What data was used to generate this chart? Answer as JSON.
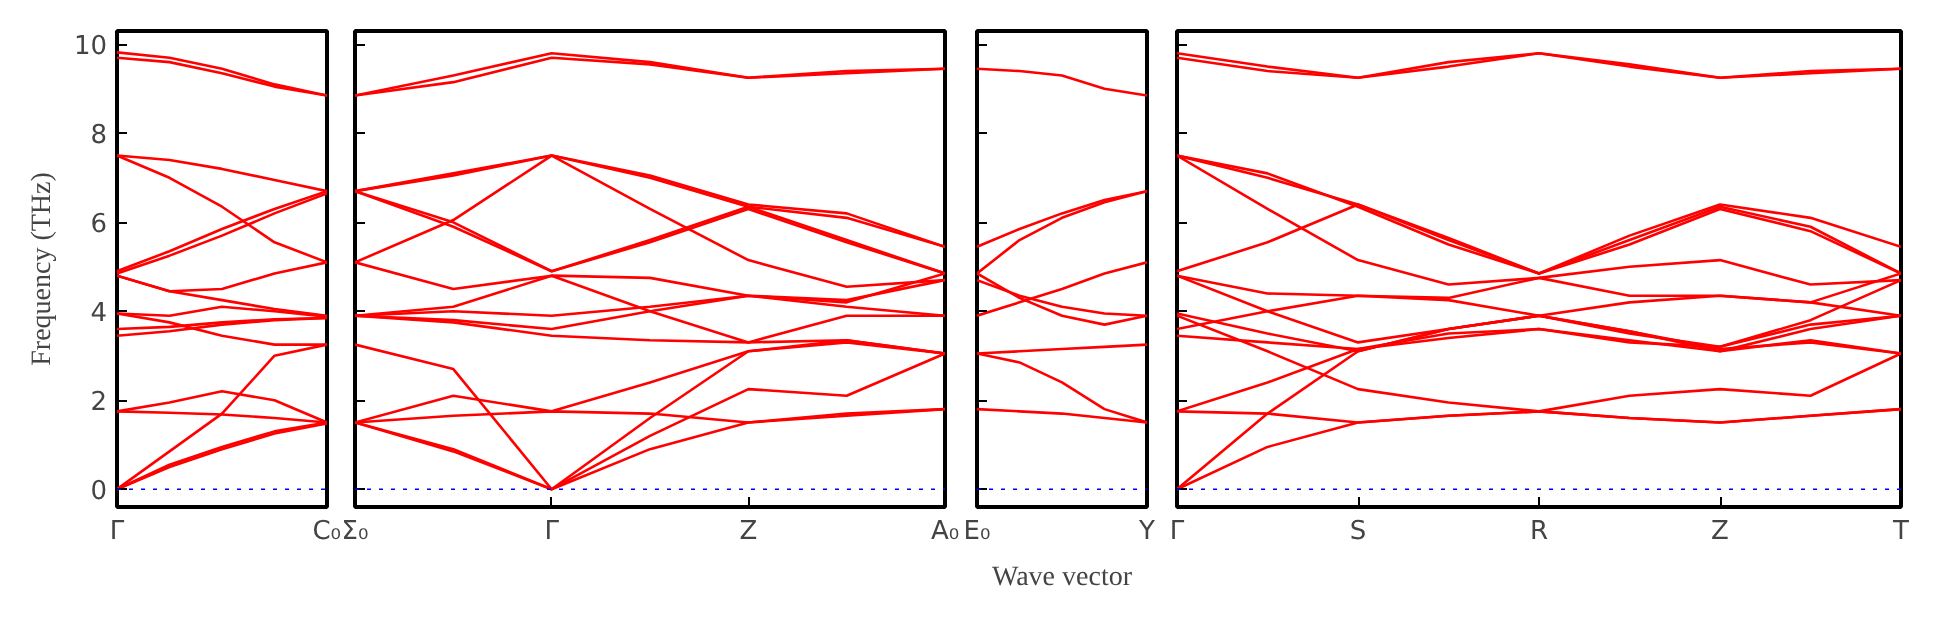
{
  "chart_data": [
    {
      "type": "line",
      "ylabel": "Frequency (THz)",
      "categories": [
        "Γ",
        null,
        null,
        null,
        "C₀"
      ],
      "ylim": [
        -0.4,
        10.3
      ],
      "yticks": [
        0,
        2,
        4,
        6,
        8,
        10
      ],
      "grid": false,
      "marker": "none",
      "line_style": "solid",
      "ref_lines": [
        {
          "axis": "y",
          "value": 0,
          "color": "#0000ff",
          "line_style": "dotted"
        }
      ],
      "series": [
        {
          "color": "#ff0000",
          "values": [
            9.82,
            9.7,
            9.45,
            9.1,
            8.85
          ]
        },
        {
          "color": "#ff0000",
          "values": [
            9.7,
            9.6,
            9.35,
            9.05,
            8.85
          ]
        },
        {
          "color": "#ff0000",
          "values": [
            7.5,
            7.4,
            7.2,
            6.95,
            6.7
          ]
        },
        {
          "color": "#ff0000",
          "values": [
            7.5,
            7.0,
            6.35,
            5.55,
            5.1
          ]
        },
        {
          "color": "#ff0000",
          "values": [
            4.9,
            5.35,
            5.85,
            6.3,
            6.7
          ]
        },
        {
          "color": "#ff0000",
          "values": [
            4.85,
            5.25,
            5.7,
            6.2,
            6.65
          ]
        },
        {
          "color": "#ff0000",
          "values": [
            4.8,
            4.45,
            4.25,
            4.05,
            3.9
          ]
        },
        {
          "color": "#ff0000",
          "values": [
            4.8,
            4.45,
            4.5,
            4.85,
            5.1
          ]
        },
        {
          "color": "#ff0000",
          "values": [
            3.95,
            3.9,
            4.1,
            4.0,
            3.88
          ]
        },
        {
          "color": "#ff0000",
          "values": [
            3.6,
            3.65,
            3.75,
            3.82,
            3.85
          ]
        },
        {
          "color": "#ff0000",
          "values": [
            3.45,
            3.55,
            3.7,
            3.8,
            3.85
          ]
        },
        {
          "color": "#ff0000",
          "values": [
            3.95,
            3.75,
            3.45,
            3.25,
            3.25
          ]
        },
        {
          "color": "#ff0000",
          "values": [
            0,
            0.85,
            1.7,
            3.0,
            3.25
          ]
        },
        {
          "color": "#ff0000",
          "values": [
            0,
            0.55,
            0.95,
            1.3,
            1.5
          ]
        },
        {
          "color": "#ff0000",
          "values": [
            0,
            0.5,
            0.9,
            1.25,
            1.48
          ]
        },
        {
          "color": "#ff0000",
          "values": [
            1.75,
            1.95,
            2.2,
            2.0,
            1.5
          ]
        },
        {
          "color": "#ff0000",
          "values": [
            1.75,
            1.72,
            1.68,
            1.6,
            1.5
          ]
        }
      ]
    },
    {
      "type": "line",
      "categories": [
        "Σ₀",
        null,
        "Γ",
        null,
        "Z",
        null,
        "A₀"
      ],
      "ylim": [
        -0.4,
        10.3
      ],
      "yticks": [
        0,
        2,
        4,
        6,
        8,
        10
      ],
      "tick_labels": "x",
      "grid": false,
      "marker": "none",
      "line_style": "solid",
      "ref_lines": [
        {
          "axis": "y",
          "value": 0,
          "color": "#0000ff",
          "line_style": "dotted"
        }
      ],
      "series": [
        {
          "color": "#ff0000",
          "values": [
            8.85,
            9.3,
            9.8,
            9.6,
            9.25,
            9.4,
            9.45
          ]
        },
        {
          "color": "#ff0000",
          "values": [
            8.85,
            9.15,
            9.7,
            9.55,
            9.25,
            9.35,
            9.45
          ]
        },
        {
          "color": "#ff0000",
          "values": [
            6.7,
            7.1,
            7.5,
            7.0,
            6.35,
            6.1,
            5.45
          ]
        },
        {
          "color": "#ff0000",
          "values": [
            6.7,
            7.05,
            7.5,
            7.05,
            6.4,
            6.2,
            5.45
          ]
        },
        {
          "color": "#ff0000",
          "values": [
            5.1,
            6.05,
            7.5,
            6.3,
            5.15,
            4.55,
            4.7
          ]
        },
        {
          "color": "#ff0000",
          "values": [
            6.7,
            6.0,
            4.9,
            5.6,
            6.35,
            5.6,
            4.85
          ]
        },
        {
          "color": "#ff0000",
          "values": [
            6.7,
            5.9,
            4.9,
            5.55,
            6.3,
            5.55,
            4.85
          ]
        },
        {
          "color": "#ff0000",
          "values": [
            5.1,
            4.5,
            4.8,
            4.0,
            3.3,
            3.35,
            3.05
          ]
        },
        {
          "color": "#ff0000",
          "values": [
            3.9,
            4.1,
            4.8,
            4.75,
            4.35,
            4.25,
            4.7
          ]
        },
        {
          "color": "#ff0000",
          "values": [
            3.9,
            4.0,
            3.9,
            4.1,
            4.35,
            4.1,
            3.9
          ]
        },
        {
          "color": "#ff0000",
          "values": [
            3.9,
            3.8,
            3.6,
            4.0,
            4.35,
            4.2,
            4.85
          ]
        },
        {
          "color": "#ff0000",
          "values": [
            3.9,
            3.75,
            3.45,
            3.35,
            3.3,
            3.9,
            3.9
          ]
        },
        {
          "color": "#ff0000",
          "values": [
            3.25,
            2.7,
            0,
            1.6,
            3.1,
            3.35,
            3.05
          ]
        },
        {
          "color": "#ff0000",
          "values": [
            1.5,
            0.9,
            0,
            1.2,
            2.25,
            2.1,
            3.05
          ]
        },
        {
          "color": "#ff0000",
          "values": [
            1.5,
            0.85,
            0,
            0.9,
            1.5,
            1.65,
            1.8
          ]
        },
        {
          "color": "#ff0000",
          "values": [
            1.5,
            2.1,
            1.75,
            2.4,
            3.1,
            3.3,
            3.05
          ]
        },
        {
          "color": "#ff0000",
          "values": [
            1.5,
            1.65,
            1.75,
            1.7,
            1.5,
            1.7,
            1.8
          ]
        }
      ]
    },
    {
      "type": "line",
      "xlabel": "Wave vector",
      "categories": [
        "E₀",
        null,
        null,
        null,
        "Y"
      ],
      "ylim": [
        -0.4,
        10.3
      ],
      "yticks": [
        0,
        2,
        4,
        6,
        8,
        10
      ],
      "tick_labels": "x",
      "grid": false,
      "marker": "none",
      "line_style": "solid",
      "ref_lines": [
        {
          "axis": "y",
          "value": 0,
          "color": "#0000ff",
          "line_style": "dotted"
        }
      ],
      "series": [
        {
          "color": "#ff0000",
          "values": [
            9.45,
            9.4,
            9.3,
            9.0,
            8.85
          ]
        },
        {
          "color": "#ff0000",
          "values": [
            5.45,
            5.85,
            6.2,
            6.5,
            6.7
          ]
        },
        {
          "color": "#ff0000",
          "values": [
            4.85,
            5.6,
            6.1,
            6.45,
            6.7
          ]
        },
        {
          "color": "#ff0000",
          "values": [
            4.85,
            4.3,
            3.9,
            3.7,
            3.9
          ]
        },
        {
          "color": "#ff0000",
          "values": [
            3.9,
            4.2,
            4.5,
            4.85,
            5.1
          ]
        },
        {
          "color": "#ff0000",
          "values": [
            4.7,
            4.35,
            4.1,
            3.95,
            3.9
          ]
        },
        {
          "color": "#ff0000",
          "values": [
            3.05,
            3.1,
            3.15,
            3.2,
            3.25
          ]
        },
        {
          "color": "#ff0000",
          "values": [
            3.05,
            2.85,
            2.4,
            1.8,
            1.5
          ]
        },
        {
          "color": "#ff0000",
          "values": [
            1.8,
            1.75,
            1.7,
            1.6,
            1.5
          ]
        }
      ]
    },
    {
      "type": "line",
      "categories": [
        "Γ",
        null,
        "S",
        null,
        "R",
        null,
        "Z",
        null,
        "T"
      ],
      "ylim": [
        -0.4,
        10.3
      ],
      "yticks": [
        0,
        2,
        4,
        6,
        8,
        10
      ],
      "tick_labels": "x",
      "grid": false,
      "marker": "none",
      "line_style": "solid",
      "ref_lines": [
        {
          "axis": "y",
          "value": 0,
          "color": "#0000ff",
          "line_style": "dotted"
        }
      ],
      "series": [
        {
          "color": "#ff0000",
          "values": [
            9.8,
            9.5,
            9.25,
            9.6,
            9.8,
            9.55,
            9.25,
            9.4,
            9.45
          ]
        },
        {
          "color": "#ff0000",
          "values": [
            9.7,
            9.4,
            9.25,
            9.5,
            9.8,
            9.5,
            9.25,
            9.35,
            9.45
          ]
        },
        {
          "color": "#ff0000",
          "values": [
            7.5,
            7.0,
            6.4,
            5.6,
            4.85,
            5.7,
            6.4,
            6.1,
            5.45
          ]
        },
        {
          "color": "#ff0000",
          "values": [
            7.5,
            7.1,
            6.35,
            5.5,
            4.85,
            5.6,
            6.35,
            5.9,
            4.85
          ]
        },
        {
          "color": "#ff0000",
          "values": [
            4.9,
            5.55,
            6.4,
            5.65,
            4.85,
            5.5,
            6.3,
            5.8,
            4.85
          ]
        },
        {
          "color": "#ff0000",
          "values": [
            7.5,
            6.3,
            5.15,
            4.6,
            4.75,
            5.0,
            5.15,
            4.6,
            4.7
          ]
        },
        {
          "color": "#ff0000",
          "values": [
            4.8,
            4.4,
            4.35,
            4.25,
            3.9,
            4.2,
            4.35,
            4.2,
            3.9
          ]
        },
        {
          "color": "#ff0000",
          "values": [
            4.8,
            4.0,
            3.3,
            3.6,
            3.9,
            3.5,
            3.2,
            3.8,
            4.7
          ]
        },
        {
          "color": "#ff0000",
          "values": [
            3.6,
            4.0,
            4.35,
            4.3,
            4.75,
            4.35,
            4.35,
            4.2,
            4.85
          ]
        },
        {
          "color": "#ff0000",
          "values": [
            3.45,
            3.3,
            3.15,
            3.4,
            3.6,
            3.35,
            3.1,
            3.35,
            3.05
          ]
        },
        {
          "color": "#ff0000",
          "values": [
            3.95,
            3.5,
            3.1,
            3.6,
            3.9,
            3.55,
            3.1,
            3.6,
            3.9
          ]
        },
        {
          "color": "#ff0000",
          "values": [
            3.9,
            3.1,
            2.25,
            1.95,
            1.75,
            2.1,
            2.25,
            2.1,
            3.05
          ]
        },
        {
          "color": "#ff0000",
          "values": [
            0,
            0.95,
            1.5,
            1.65,
            1.75,
            1.6,
            1.5,
            1.65,
            1.8
          ]
        },
        {
          "color": "#ff0000",
          "values": [
            0,
            1.7,
            3.1,
            3.6,
            3.9,
            3.55,
            3.15,
            3.3,
            3.05
          ]
        },
        {
          "color": "#ff0000",
          "values": [
            1.75,
            2.4,
            3.15,
            3.5,
            3.6,
            3.3,
            3.2,
            3.7,
            3.9
          ]
        },
        {
          "color": "#ff0000",
          "values": [
            1.75,
            1.7,
            1.5,
            1.65,
            1.75,
            1.6,
            1.5,
            1.65,
            1.8
          ]
        }
      ]
    }
  ]
}
